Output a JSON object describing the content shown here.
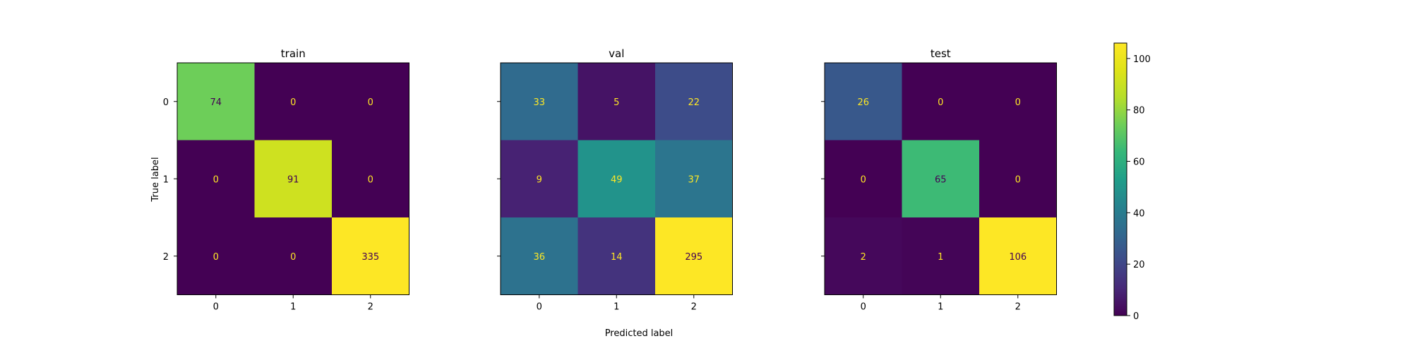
{
  "chart_data": [
    {
      "type": "heatmap",
      "title": "train",
      "x_ticks": [
        "0",
        "1",
        "2"
      ],
      "y_ticks": [
        "0",
        "1",
        "2"
      ],
      "values": [
        [
          74,
          0,
          0
        ],
        [
          0,
          91,
          0
        ],
        [
          0,
          0,
          335
        ]
      ]
    },
    {
      "type": "heatmap",
      "title": "val",
      "x_ticks": [
        "0",
        "1",
        "2"
      ],
      "y_ticks": [
        "0",
        "1",
        "2"
      ],
      "values": [
        [
          33,
          5,
          22
        ],
        [
          9,
          49,
          37
        ],
        [
          36,
          14,
          295
        ]
      ]
    },
    {
      "type": "heatmap",
      "title": "test",
      "x_ticks": [
        "0",
        "1",
        "2"
      ],
      "y_ticks": [
        "0",
        "1",
        "2"
      ],
      "values": [
        [
          26,
          0,
          0
        ],
        [
          0,
          65,
          0
        ],
        [
          2,
          1,
          106
        ]
      ]
    }
  ],
  "shared": {
    "xlabel": "Predicted label",
    "ylabel": "True label",
    "colormap": "viridis",
    "colorbar": {
      "min": 0,
      "max": 106,
      "ticks": [
        0,
        20,
        40,
        60,
        80,
        100
      ]
    },
    "text_color_light": "#fde725",
    "text_color_dark": "#440154"
  }
}
